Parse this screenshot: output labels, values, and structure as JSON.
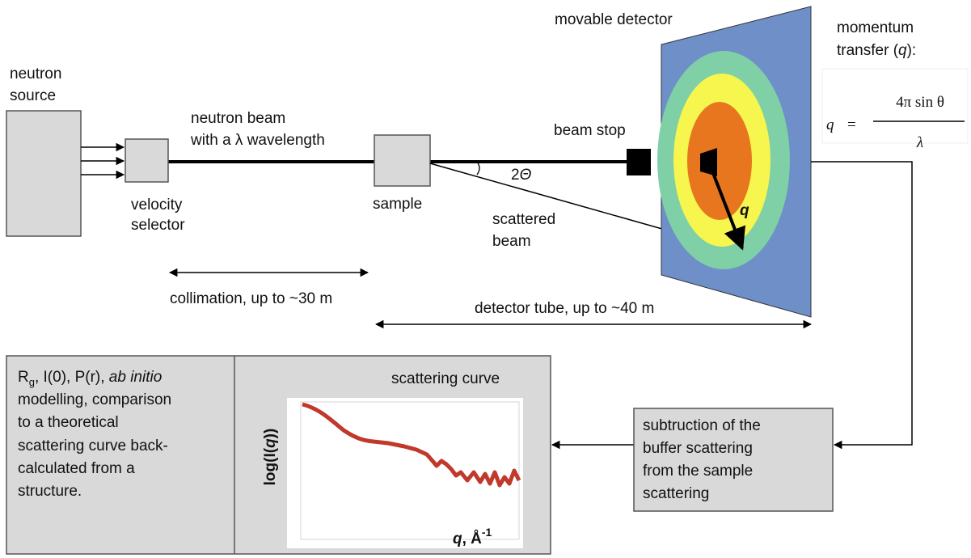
{
  "neutron_source": [
    "neutron",
    "source"
  ],
  "velocity_selector": [
    "velocity",
    "selector"
  ],
  "neutron_beam": [
    "neutron beam",
    "with a λ wavelength"
  ],
  "sample": "sample",
  "beam_stop": "beam stop",
  "angle": {
    "number": "2",
    "symbol": "Θ"
  },
  "scattered_beam": [
    "scattered",
    "beam"
  ],
  "q_vector": "q",
  "movable_detector": "movable detector",
  "momentum_transfer": {
    "line1": "momentum",
    "prefix": "transfer (",
    "symbol": "q",
    "suffix": "):"
  },
  "formula": {
    "lhs": "q",
    "equals": "=",
    "numerator": "4π sin θ",
    "denominator": "λ"
  },
  "collimation": "collimation, up to ~30 m",
  "detector_tube": "detector tube, up to ~40 m",
  "analysis": {
    "symbol": "R",
    "subscript": "g",
    "rest": ", I(0), P(r), ",
    "italic": "ab initio",
    "lines": [
      "modelling, comparison",
      "to a theoretical",
      "scattering curve back-",
      "calculated from a",
      "structure."
    ]
  },
  "scattering_curve": {
    "title": "scattering curve",
    "y_prefix": "log(I(",
    "y_symbol": "q",
    "y_suffix": "))",
    "x_symbol": "q",
    "x_unit": ", Å",
    "x_exponent": "-1"
  },
  "buffer_subtraction": [
    "subtruction of the",
    "buffer scattering",
    "from the sample",
    "scattering"
  ]
}
